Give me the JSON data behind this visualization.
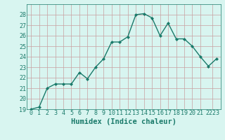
{
  "x": [
    0,
    1,
    2,
    3,
    4,
    5,
    6,
    7,
    8,
    9,
    10,
    11,
    12,
    13,
    14,
    15,
    16,
    17,
    18,
    19,
    20,
    21,
    22,
    23
  ],
  "y": [
    19.0,
    19.2,
    21.0,
    21.4,
    21.4,
    21.4,
    22.5,
    21.9,
    23.0,
    23.8,
    25.4,
    25.4,
    25.9,
    28.0,
    28.1,
    27.7,
    26.0,
    27.2,
    25.7,
    25.7,
    25.0,
    24.0,
    23.1,
    23.8
  ],
  "line_color": "#1a7a6a",
  "marker": "D",
  "marker_size": 2.0,
  "background_color": "#d8f5f0",
  "grid_color": "#c8a0a0",
  "xlabel": "Humidex (Indice chaleur)",
  "ylim": [
    19,
    29
  ],
  "xlim": [
    -0.5,
    23.5
  ],
  "yticks": [
    19,
    20,
    21,
    22,
    23,
    24,
    25,
    26,
    27,
    28
  ],
  "ytick_labels": [
    "19",
    "20",
    "21",
    "22",
    "23",
    "24",
    "25",
    "26",
    "27",
    "28"
  ],
  "xtick_labels": [
    "0",
    "1",
    "2",
    "3",
    "4",
    "5",
    "6",
    "7",
    "8",
    "9",
    "10",
    "11",
    "12",
    "13",
    "14",
    "15",
    "16",
    "17",
    "18",
    "19",
    "20",
    "21",
    "2223"
  ],
  "xtick_positions": [
    0,
    1,
    2,
    3,
    4,
    5,
    6,
    7,
    8,
    9,
    10,
    11,
    12,
    13,
    14,
    15,
    16,
    17,
    18,
    19,
    20,
    21,
    22.5
  ],
  "tick_fontsize": 6.0,
  "xlabel_fontsize": 7.5,
  "linewidth": 1.0
}
